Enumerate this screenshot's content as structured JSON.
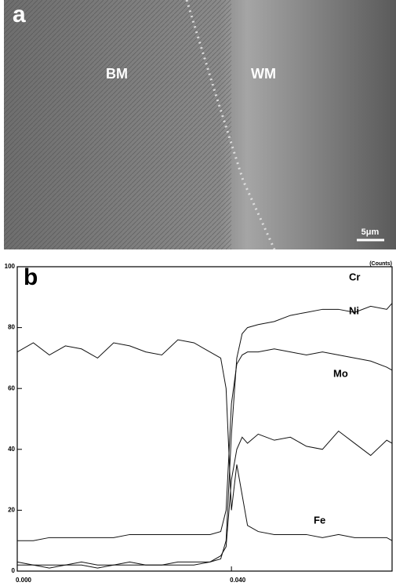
{
  "panel_a": {
    "label": "a",
    "left_region": "BM",
    "right_region": "WM",
    "scale_bar": "5μm"
  },
  "chart_data": {
    "type": "line",
    "panel_label": "b",
    "unit_label": "(Counts)",
    "x": [
      0,
      0.003,
      0.006,
      0.009,
      0.012,
      0.015,
      0.018,
      0.021,
      0.024,
      0.027,
      0.03,
      0.033,
      0.036,
      0.038,
      0.039,
      0.04,
      0.041,
      0.042,
      0.043,
      0.045,
      0.048,
      0.051,
      0.054,
      0.057,
      0.06,
      0.063,
      0.066,
      0.069,
      0.07
    ],
    "series": [
      {
        "name": "Cr",
        "color": "#111",
        "values": [
          2,
          2,
          1,
          2,
          2,
          1,
          2,
          2,
          2,
          2,
          2,
          2,
          3,
          4,
          10,
          45,
          70,
          78,
          80,
          81,
          82,
          84,
          85,
          86,
          86,
          85,
          87,
          86,
          88
        ]
      },
      {
        "name": "Ni",
        "color": "#111",
        "values": [
          10,
          10,
          11,
          11,
          11,
          11,
          11,
          12,
          12,
          12,
          12,
          12,
          12,
          13,
          20,
          55,
          68,
          71,
          72,
          72,
          73,
          72,
          71,
          72,
          71,
          70,
          69,
          67,
          66
        ]
      },
      {
        "name": "Mo",
        "color": "#111",
        "values": [
          3,
          2,
          2,
          2,
          3,
          2,
          2,
          3,
          2,
          2,
          3,
          3,
          3,
          5,
          8,
          30,
          40,
          44,
          42,
          45,
          43,
          44,
          41,
          40,
          46,
          42,
          38,
          43,
          42
        ]
      },
      {
        "name": "Fe",
        "color": "#111",
        "values": [
          72,
          75,
          71,
          74,
          73,
          70,
          75,
          74,
          72,
          71,
          76,
          75,
          72,
          70,
          60,
          20,
          35,
          25,
          15,
          13,
          12,
          12,
          12,
          11,
          12,
          11,
          11,
          11,
          10
        ]
      }
    ],
    "xlim": [
      0,
      0.07
    ],
    "xticks": [
      {
        "value": 0,
        "label": "0.000"
      },
      {
        "value": 0.04,
        "label": "0.040"
      }
    ],
    "ylim": [
      0,
      100
    ],
    "yticks": [
      0,
      20,
      40,
      60,
      80,
      100
    ]
  }
}
